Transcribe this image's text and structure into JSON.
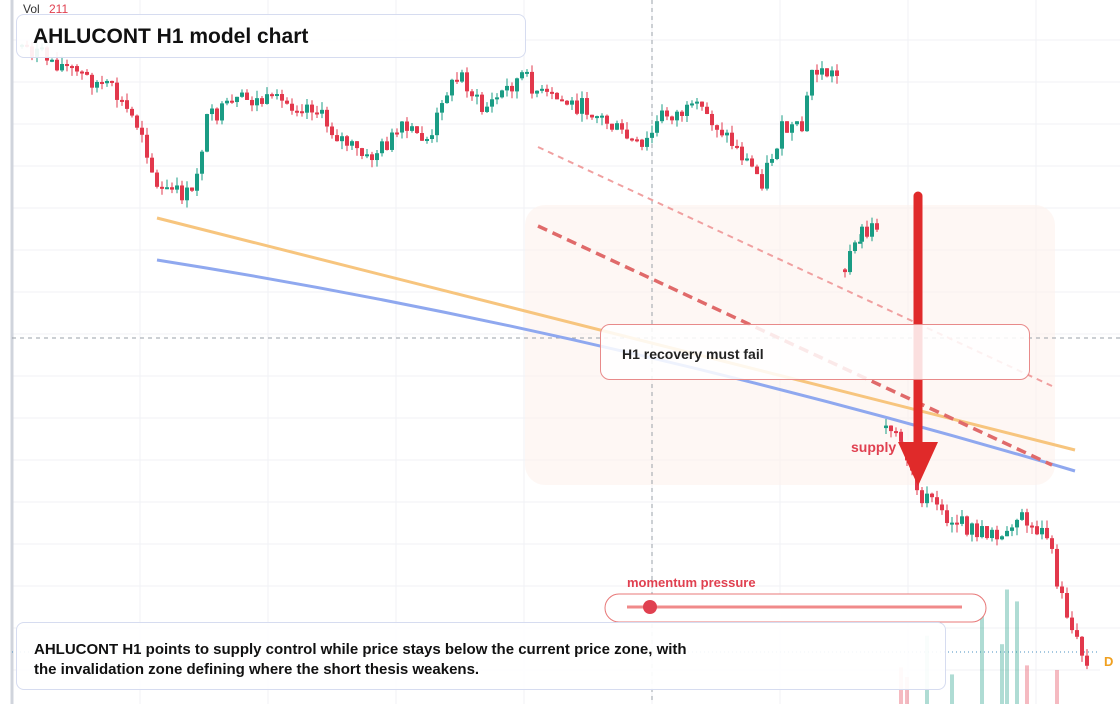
{
  "header": {
    "volume_label": "Vol",
    "volume_value": 211,
    "title": "AHLUCONT H1 model chart"
  },
  "annotations": {
    "callout": "H1 recovery must fail",
    "zone_label": "supply",
    "gauge_label": "momentum pressure"
  },
  "summary": {
    "lines": [
      "AHLUCONT H1 points to supply control while price stays below the current price zone, with",
      "the invalidation zone defining where the short thesis weakens."
    ]
  },
  "badge": "D"
}
